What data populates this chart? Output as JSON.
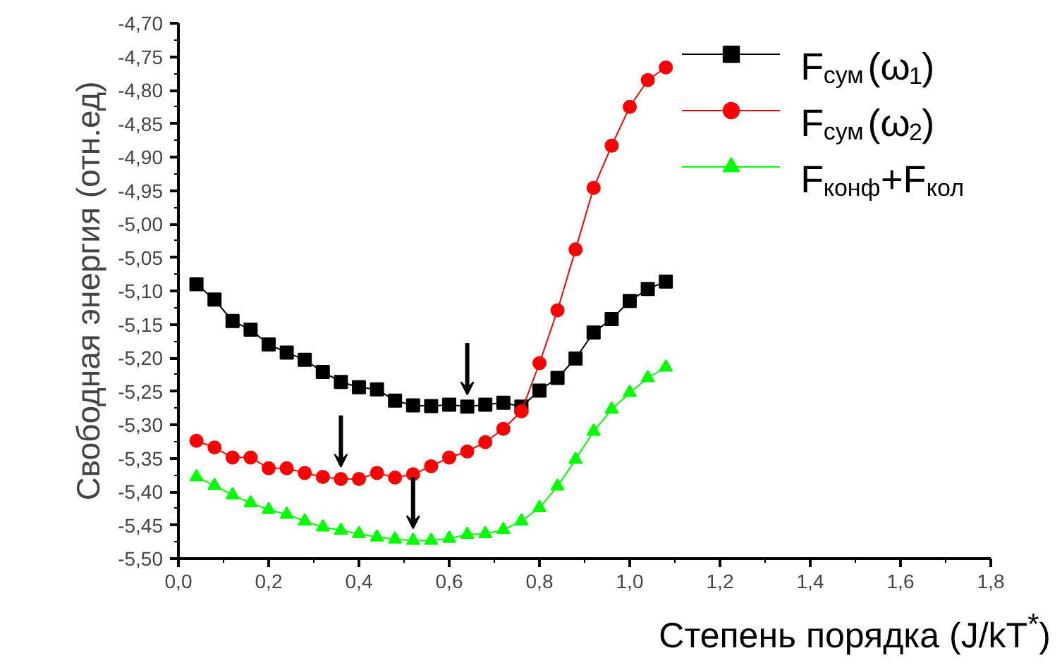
{
  "chart_data": {
    "type": "line",
    "xlabel": "Степень порядка (J/kT$^{*}$)",
    "ylabel": "Свободная энергия (отн.ед)",
    "x": [
      0.04,
      0.08,
      0.12,
      0.16,
      0.2,
      0.24,
      0.28,
      0.32,
      0.36,
      0.4,
      0.44,
      0.48,
      0.52,
      0.56,
      0.6,
      0.64,
      0.68,
      0.72,
      0.76,
      0.8,
      0.84,
      0.88,
      0.92,
      0.96,
      1.0,
      1.04,
      1.08
    ],
    "series": [
      {
        "name": "F$_{сум}$(ω$_{1}$)",
        "color": "#000000",
        "marker": "square",
        "values": [
          -5.09,
          -5.113,
          -5.145,
          -5.158,
          -5.18,
          -5.192,
          -5.203,
          -5.221,
          -5.236,
          -5.244,
          -5.247,
          -5.264,
          -5.271,
          -5.272,
          -5.27,
          -5.273,
          -5.27,
          -5.267,
          -5.273,
          -5.249,
          -5.23,
          -5.201,
          -5.162,
          -5.142,
          -5.115,
          -5.097,
          -5.086
        ]
      },
      {
        "name": "F$_{сум}$(ω$_{2}$)",
        "color": "#ff0000",
        "marker": "circle",
        "values": [
          -5.324,
          -5.334,
          -5.349,
          -5.349,
          -5.365,
          -5.365,
          -5.372,
          -5.378,
          -5.381,
          -5.381,
          -5.372,
          -5.379,
          -5.374,
          -5.362,
          -5.349,
          -5.34,
          -5.326,
          -5.306,
          -5.28,
          -5.208,
          -5.129,
          -5.038,
          -4.946,
          -4.883,
          -4.825,
          -4.785,
          -4.766
        ]
      },
      {
        "name": "F$_{конф}$+F$_{кол}$",
        "color": "#00ff00",
        "marker": "triangle",
        "values": [
          -5.378,
          -5.391,
          -5.405,
          -5.417,
          -5.427,
          -5.434,
          -5.444,
          -5.453,
          -5.458,
          -5.463,
          -5.468,
          -5.471,
          -5.473,
          -5.473,
          -5.47,
          -5.464,
          -5.463,
          -5.457,
          -5.444,
          -5.424,
          -5.392,
          -5.352,
          -5.31,
          -5.277,
          -5.252,
          -5.23,
          -5.214
        ]
      }
    ],
    "xlim": [
      0,
      1.8
    ],
    "ylim": [
      -5.5,
      -4.7
    ],
    "xticks": [
      {
        "value": 0,
        "label": "0,0"
      },
      {
        "value": 0.2,
        "label": "0,2"
      },
      {
        "value": 0.4,
        "label": "0,4"
      },
      {
        "value": 0.6,
        "label": "0,6"
      },
      {
        "value": 0.8,
        "label": "0,8"
      },
      {
        "value": 1.0,
        "label": "1,0"
      },
      {
        "value": 1.2,
        "label": "1,2"
      },
      {
        "value": 1.4,
        "label": "1,4"
      },
      {
        "value": 1.6,
        "label": "1,6"
      },
      {
        "value": 1.8,
        "label": "1,8"
      }
    ],
    "yticks": [
      {
        "value": -5.5,
        "label": "-5,50"
      },
      {
        "value": -5.45,
        "label": "-5,45"
      },
      {
        "value": -5.4,
        "label": "-5,40"
      },
      {
        "value": -5.35,
        "label": "-5,35"
      },
      {
        "value": -5.3,
        "label": "-5,30"
      },
      {
        "value": -5.25,
        "label": "-5,25"
      },
      {
        "value": -5.2,
        "label": "-5,20"
      },
      {
        "value": -5.15,
        "label": "-5,15"
      },
      {
        "value": -5.1,
        "label": "-5,10"
      },
      {
        "value": -5.05,
        "label": "-5,05"
      },
      {
        "value": -5.0,
        "label": "-5,00"
      },
      {
        "value": -4.95,
        "label": "-4,95"
      },
      {
        "value": -4.9,
        "label": "-4,90"
      },
      {
        "value": -4.85,
        "label": "-4,85"
      },
      {
        "value": -4.8,
        "label": "-4,80"
      },
      {
        "value": -4.75,
        "label": "-4,75"
      },
      {
        "value": -4.7,
        "label": "-4,70"
      }
    ],
    "grid": false,
    "legend": "top right",
    "line_style": "solid"
  }
}
